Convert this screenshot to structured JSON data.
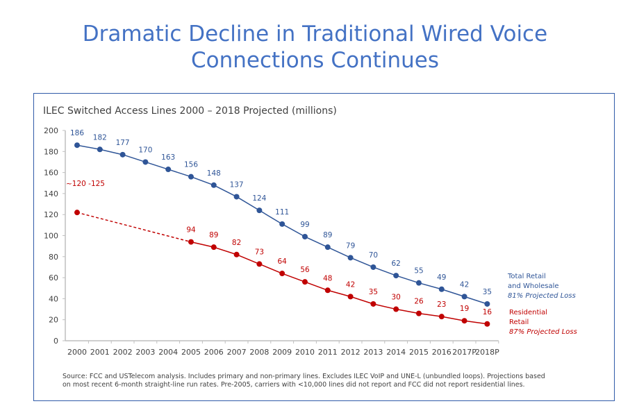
{
  "slide": {
    "title_line1": "Dramatic Decline in Traditional Wired Voice",
    "title_line2": "Connections Continues"
  },
  "legend": {
    "total_line1": "Total Retail",
    "total_line2": "and Wholesale",
    "total_note": "81% Projected Loss",
    "res_line1": "Residential",
    "res_line2": "Retail",
    "res_note": "87% Projected Loss"
  },
  "source": {
    "line1": "Source:  FCC and USTelecom analysis.  Includes primary and non-primary lines. Excludes ILEC VoIP and UNE-L (unbundled loops). Projections based",
    "line2": "on most recent 6-month straight-line run rates. Pre-2005, carriers with <10,000 lines did not report and FCC did not report residential lines."
  },
  "colors": {
    "blue": "#2f5597",
    "red": "#c00000",
    "title": "#4472c4"
  },
  "chart_data": {
    "type": "line",
    "title": "ILEC Switched Access Lines 2000 – 2018 Projected (millions)",
    "xlabel": "",
    "ylabel": "",
    "ylim": [
      0,
      200
    ],
    "yticks": [
      0,
      20,
      40,
      60,
      80,
      100,
      120,
      140,
      160,
      180,
      200
    ],
    "categories": [
      "2000",
      "2001",
      "2002",
      "2003",
      "2004",
      "2005",
      "2006",
      "2007",
      "2008",
      "2009",
      "2010",
      "2011",
      "2012",
      "2013",
      "2014",
      "2015",
      "2016",
      "2017P",
      "2018P"
    ],
    "grid": false,
    "legend_position": "right",
    "series": [
      {
        "name": "Total Retail and Wholesale",
        "values": [
          186,
          182,
          177,
          170,
          163,
          156,
          148,
          137,
          124,
          111,
          99,
          89,
          79,
          70,
          62,
          55,
          49,
          42,
          35
        ]
      },
      {
        "name": "Residential Retail",
        "values": [
          122,
          null,
          null,
          null,
          null,
          94,
          89,
          82,
          73,
          64,
          56,
          48,
          42,
          35,
          30,
          26,
          23,
          19,
          16
        ],
        "first_label": "~120 -125",
        "dashed_segment": [
          "2000",
          "2005"
        ]
      }
    ]
  }
}
